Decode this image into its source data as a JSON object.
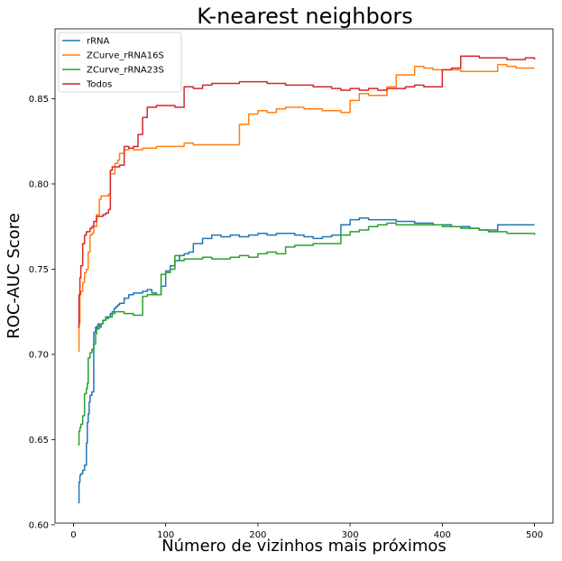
{
  "chart_data": {
    "type": "line",
    "title": "K-nearest neighbors",
    "xlabel": "Número de vizinhos mais próximos",
    "ylabel": "ROC-AUC Score",
    "xlim": [
      -20,
      520
    ],
    "ylim": [
      0.601,
      0.891
    ],
    "xticks": [
      0,
      100,
      200,
      300,
      400,
      500
    ],
    "yticks": [
      0.6,
      0.65,
      0.7,
      0.75,
      0.8,
      0.85
    ],
    "xtick_labels": [
      "0",
      "100",
      "200",
      "300",
      "400",
      "500"
    ],
    "ytick_labels": [
      "0.60",
      "0.65",
      "0.70",
      "0.75",
      "0.80",
      "0.85"
    ],
    "grid": false,
    "legend": "upper-left",
    "series": [
      {
        "name": "rRNA",
        "color": "#1f77b4",
        "x": [
          5,
          6,
          7,
          8,
          10,
          12,
          14,
          15,
          16,
          17,
          18,
          20,
          22,
          24,
          25,
          26,
          27,
          28,
          30,
          32,
          35,
          38,
          40,
          42,
          44,
          46,
          48,
          50,
          55,
          60,
          65,
          70,
          75,
          80,
          85,
          90,
          95,
          100,
          105,
          110,
          115,
          120,
          125,
          130,
          140,
          150,
          160,
          170,
          180,
          190,
          200,
          210,
          220,
          230,
          240,
          250,
          260,
          270,
          280,
          290,
          300,
          310,
          320,
          330,
          340,
          350,
          360,
          370,
          380,
          390,
          400,
          410,
          420,
          430,
          440,
          450,
          460,
          470,
          480,
          490,
          500
        ],
        "y": [
          0.613,
          0.625,
          0.629,
          0.63,
          0.632,
          0.635,
          0.648,
          0.66,
          0.665,
          0.672,
          0.676,
          0.678,
          0.713,
          0.716,
          0.715,
          0.717,
          0.718,
          0.716,
          0.718,
          0.72,
          0.722,
          0.722,
          0.724,
          0.725,
          0.727,
          0.728,
          0.729,
          0.73,
          0.733,
          0.735,
          0.736,
          0.736,
          0.737,
          0.738,
          0.736,
          0.735,
          0.74,
          0.749,
          0.752,
          0.755,
          0.758,
          0.759,
          0.76,
          0.765,
          0.768,
          0.77,
          0.769,
          0.77,
          0.769,
          0.77,
          0.771,
          0.77,
          0.771,
          0.771,
          0.77,
          0.769,
          0.768,
          0.769,
          0.77,
          0.776,
          0.779,
          0.78,
          0.779,
          0.779,
          0.779,
          0.778,
          0.778,
          0.777,
          0.777,
          0.776,
          0.776,
          0.775,
          0.775,
          0.774,
          0.773,
          0.772,
          0.776,
          0.776,
          0.776,
          0.776,
          0.776
        ]
      },
      {
        "name": "ZCurve_rRNA16S",
        "color": "#ff7f0e",
        "x": [
          5,
          6,
          7,
          8,
          10,
          12,
          14,
          16,
          18,
          20,
          22,
          25,
          28,
          30,
          35,
          38,
          40,
          42,
          45,
          48,
          50,
          55,
          60,
          65,
          70,
          75,
          80,
          90,
          100,
          110,
          120,
          130,
          140,
          150,
          160,
          170,
          180,
          190,
          200,
          210,
          220,
          230,
          240,
          250,
          260,
          270,
          280,
          290,
          300,
          310,
          320,
          330,
          340,
          350,
          360,
          370,
          380,
          390,
          400,
          410,
          420,
          430,
          440,
          450,
          460,
          470,
          480,
          490,
          500
        ],
        "y": [
          0.702,
          0.718,
          0.735,
          0.737,
          0.742,
          0.748,
          0.75,
          0.76,
          0.77,
          0.771,
          0.775,
          0.782,
          0.791,
          0.793,
          0.793,
          0.794,
          0.806,
          0.806,
          0.812,
          0.814,
          0.818,
          0.82,
          0.821,
          0.82,
          0.82,
          0.821,
          0.821,
          0.822,
          0.822,
          0.822,
          0.824,
          0.823,
          0.823,
          0.823,
          0.823,
          0.823,
          0.835,
          0.841,
          0.843,
          0.842,
          0.844,
          0.845,
          0.845,
          0.844,
          0.844,
          0.843,
          0.843,
          0.842,
          0.849,
          0.853,
          0.852,
          0.852,
          0.857,
          0.864,
          0.864,
          0.869,
          0.868,
          0.867,
          0.867,
          0.867,
          0.866,
          0.866,
          0.866,
          0.866,
          0.87,
          0.869,
          0.868,
          0.868,
          0.868
        ]
      },
      {
        "name": "ZCurve_rRNA23S",
        "color": "#2ca02c",
        "x": [
          5,
          6,
          7,
          8,
          10,
          12,
          14,
          15,
          16,
          18,
          20,
          22,
          24,
          25,
          28,
          30,
          32,
          35,
          38,
          40,
          42,
          45,
          50,
          55,
          60,
          65,
          70,
          75,
          80,
          85,
          90,
          95,
          100,
          105,
          110,
          115,
          120,
          130,
          140,
          150,
          160,
          170,
          180,
          190,
          200,
          210,
          220,
          230,
          240,
          250,
          260,
          270,
          280,
          290,
          300,
          310,
          320,
          330,
          340,
          350,
          360,
          370,
          380,
          390,
          400,
          410,
          420,
          430,
          440,
          450,
          460,
          470,
          480,
          490,
          500
        ],
        "y": [
          0.647,
          0.655,
          0.657,
          0.659,
          0.664,
          0.677,
          0.68,
          0.683,
          0.698,
          0.701,
          0.703,
          0.706,
          0.712,
          0.715,
          0.717,
          0.718,
          0.72,
          0.721,
          0.722,
          0.722,
          0.724,
          0.725,
          0.725,
          0.724,
          0.724,
          0.723,
          0.723,
          0.734,
          0.735,
          0.735,
          0.735,
          0.747,
          0.748,
          0.75,
          0.758,
          0.755,
          0.756,
          0.756,
          0.757,
          0.756,
          0.756,
          0.757,
          0.758,
          0.757,
          0.759,
          0.76,
          0.759,
          0.763,
          0.764,
          0.764,
          0.765,
          0.765,
          0.765,
          0.77,
          0.772,
          0.773,
          0.775,
          0.776,
          0.777,
          0.776,
          0.776,
          0.776,
          0.776,
          0.776,
          0.775,
          0.775,
          0.774,
          0.774,
          0.773,
          0.773,
          0.772,
          0.771,
          0.771,
          0.771,
          0.77
        ]
      },
      {
        "name": "Todos",
        "color": "#d62728",
        "x": [
          5,
          6,
          7,
          8,
          10,
          12,
          14,
          16,
          18,
          20,
          22,
          25,
          28,
          30,
          32,
          35,
          38,
          40,
          42,
          45,
          48,
          50,
          55,
          60,
          65,
          70,
          75,
          80,
          90,
          100,
          110,
          120,
          130,
          140,
          150,
          160,
          170,
          180,
          190,
          200,
          210,
          220,
          230,
          240,
          250,
          260,
          270,
          280,
          290,
          300,
          310,
          320,
          330,
          340,
          350,
          360,
          370,
          380,
          390,
          400,
          410,
          420,
          430,
          440,
          450,
          460,
          470,
          480,
          490,
          500
        ],
        "y": [
          0.716,
          0.735,
          0.745,
          0.752,
          0.765,
          0.77,
          0.772,
          0.772,
          0.774,
          0.775,
          0.778,
          0.781,
          0.781,
          0.781,
          0.782,
          0.783,
          0.785,
          0.808,
          0.81,
          0.81,
          0.81,
          0.811,
          0.822,
          0.821,
          0.822,
          0.829,
          0.839,
          0.845,
          0.846,
          0.846,
          0.845,
          0.857,
          0.856,
          0.858,
          0.859,
          0.859,
          0.859,
          0.86,
          0.86,
          0.86,
          0.859,
          0.859,
          0.858,
          0.858,
          0.858,
          0.857,
          0.857,
          0.856,
          0.855,
          0.856,
          0.855,
          0.856,
          0.855,
          0.856,
          0.856,
          0.857,
          0.858,
          0.857,
          0.857,
          0.867,
          0.868,
          0.875,
          0.875,
          0.874,
          0.874,
          0.874,
          0.873,
          0.873,
          0.874,
          0.873
        ]
      }
    ]
  }
}
